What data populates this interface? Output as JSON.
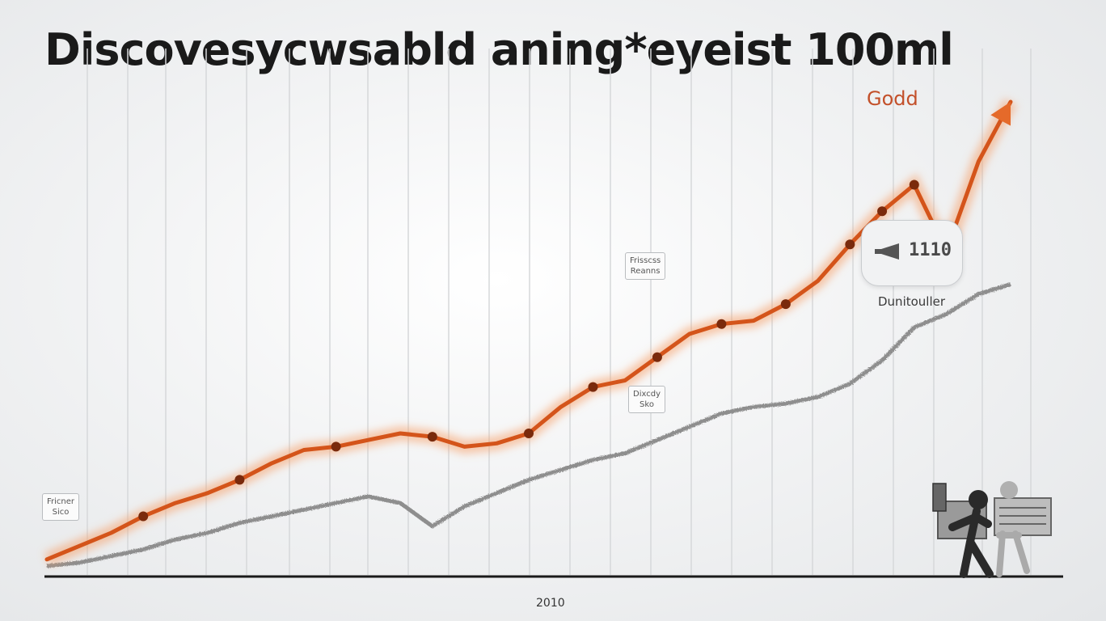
{
  "title": "Discovesycwsabld aning*eyeist 100ml",
  "chart_data": {
    "type": "line",
    "x_tick_labels": [
      "2010"
    ],
    "series": [
      {
        "name": "Godd",
        "color": "#d4541a",
        "marker_color": "#7a2a0c",
        "values": [
          0.02,
          0.06,
          0.1,
          0.15,
          0.19,
          0.22,
          0.26,
          0.31,
          0.35,
          0.36,
          0.38,
          0.4,
          0.39,
          0.36,
          0.37,
          0.4,
          0.48,
          0.54,
          0.56,
          0.63,
          0.7,
          0.73,
          0.74,
          0.79,
          0.86,
          0.97,
          1.07,
          1.15,
          0.95,
          1.22,
          1.4
        ]
      },
      {
        "name": "Dunitouller",
        "color": "#8e8e8e",
        "values": [
          0.0,
          0.01,
          0.03,
          0.05,
          0.08,
          0.1,
          0.13,
          0.15,
          0.17,
          0.19,
          0.21,
          0.19,
          0.12,
          0.18,
          0.22,
          0.26,
          0.29,
          0.32,
          0.34,
          0.38,
          0.42,
          0.46,
          0.48,
          0.49,
          0.51,
          0.55,
          0.62,
          0.72,
          0.76,
          0.82,
          0.85
        ]
      }
    ],
    "y_range": [
      0,
      1.5
    ],
    "grid": "vertical",
    "legend": "none",
    "callout": {
      "value": "1110",
      "sub": ""
    },
    "annotations": [
      {
        "lines": [
          "Fricner",
          "Sico"
        ]
      },
      {
        "lines": [
          "Frisscss",
          "Reanns"
        ]
      },
      {
        "lines": [
          "Dixcdy",
          "Sko"
        ]
      }
    ]
  }
}
